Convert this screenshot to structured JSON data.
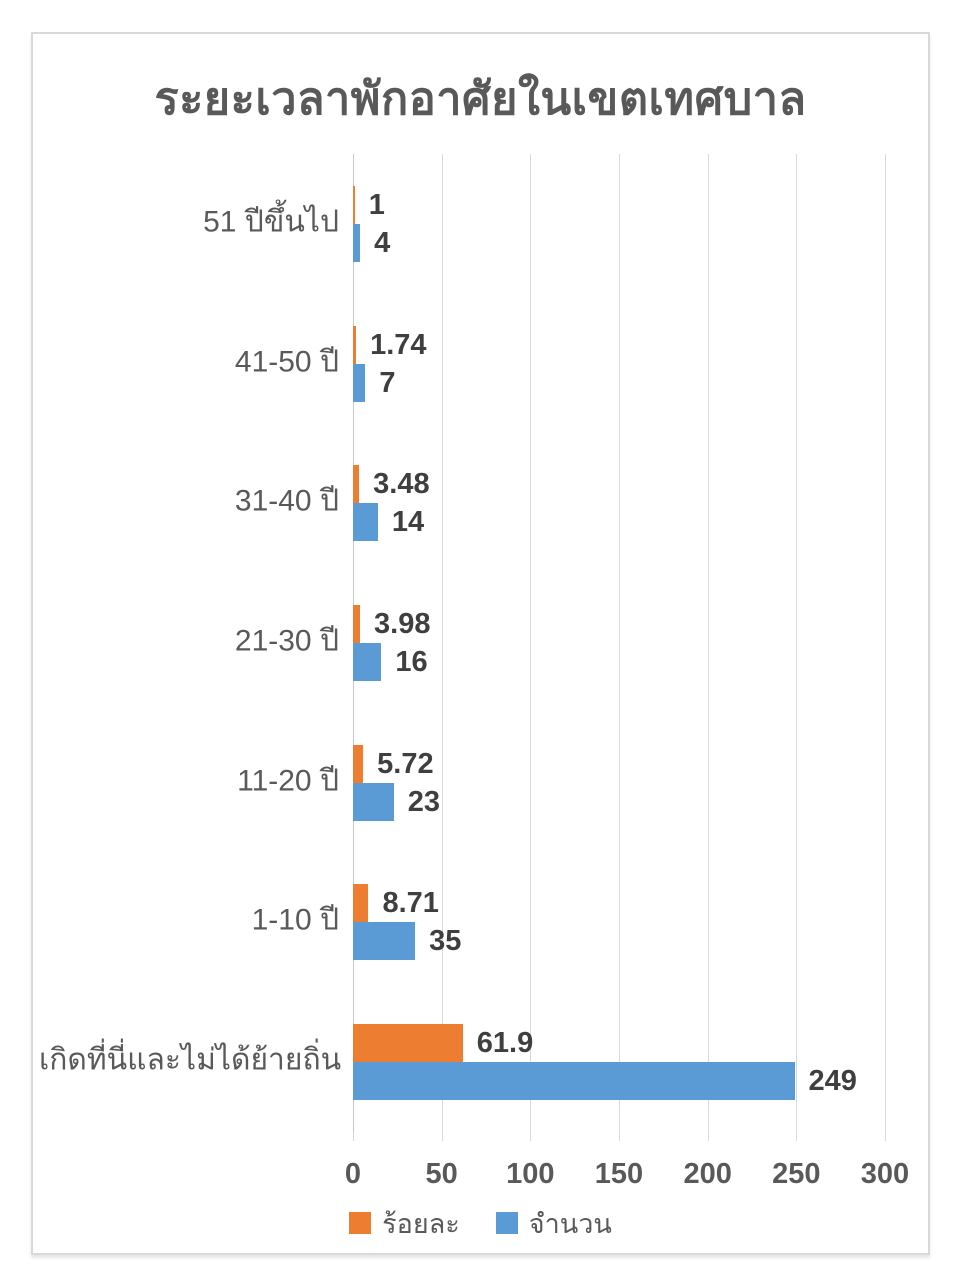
{
  "title": "ระยะเวลาพักอาศัยในเขตเทศบาล",
  "colors": {
    "percent_series": "#ED7D31",
    "count_series": "#5B9BD5",
    "gridline": "#D9D9D9",
    "text_gray": "#595959",
    "data_label": "#3F3F3F",
    "panel_border": "#D9D9D9"
  },
  "chart_data": {
    "type": "bar",
    "orientation": "horizontal",
    "title": "ระยะเวลาพักอาศัยในเขตเทศบาล",
    "categories": [
      "51 ปีขึ้นไป",
      "41-50 ปี",
      "31-40 ปี",
      "21-30 ปี",
      "11-20 ปี",
      "1-10 ปี",
      "เกิดที่นี่และไม่ได้ย้ายถิ่น"
    ],
    "series": [
      {
        "name": "ร้อยละ",
        "color": "#ED7D31",
        "values": [
          1,
          1.74,
          3.48,
          3.98,
          5.72,
          8.71,
          61.9
        ],
        "labels": [
          "1",
          "1.74",
          "3.48",
          "3.98",
          "5.72",
          "8.71",
          "61.9"
        ]
      },
      {
        "name": "จำนวน",
        "color": "#5B9BD5",
        "values": [
          4,
          7,
          14,
          16,
          23,
          35,
          249
        ],
        "labels": [
          "4",
          "7",
          "14",
          "16",
          "23",
          "35",
          "249"
        ]
      }
    ],
    "x_axis": {
      "min": 0,
      "max": 300,
      "ticks": [
        0,
        50,
        100,
        150,
        200,
        250,
        300
      ],
      "tick_labels": [
        "0",
        "50",
        "100",
        "150",
        "200",
        "250",
        "300"
      ]
    },
    "grid": true,
    "legend_position": "bottom"
  }
}
